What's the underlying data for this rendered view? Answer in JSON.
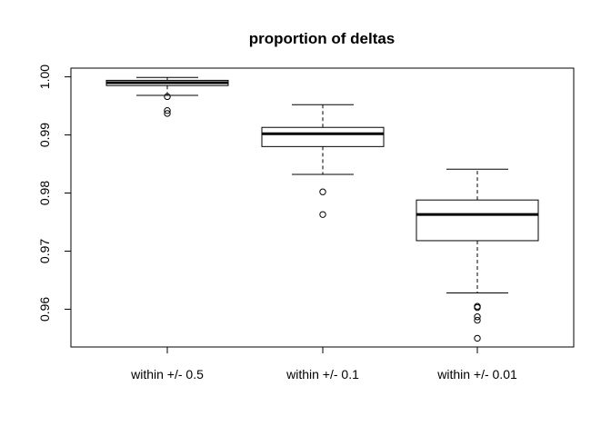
{
  "chart_data": {
    "type": "boxplot",
    "title": "proportion of deltas",
    "xlabel": "",
    "ylabel": "",
    "ylim": [
      0.9535,
      1.0015
    ],
    "yticks": [
      0.96,
      0.97,
      0.98,
      0.99,
      1.0
    ],
    "ytick_labels": [
      "0.96",
      "0.97",
      "0.98",
      "0.99",
      "1.00"
    ],
    "grid": false,
    "legend": "none",
    "categories": [
      "within +/- 0.5",
      "within +/- 0.1",
      "within +/- 0.01"
    ],
    "boxes": [
      {
        "label": "within +/- 0.5",
        "whisker_low": 0.9968,
        "q1": 0.9985,
        "median": 0.999,
        "q3": 0.9994,
        "whisker_high": 0.9999,
        "outliers": [
          0.9966,
          0.9942,
          0.9937
        ]
      },
      {
        "label": "within +/- 0.1",
        "whisker_low": 0.9832,
        "q1": 0.988,
        "median": 0.9902,
        "q3": 0.9913,
        "whisker_high": 0.9952,
        "outliers": [
          0.9802,
          0.9763
        ]
      },
      {
        "label": "within +/- 0.01",
        "whisker_low": 0.9628,
        "q1": 0.9718,
        "median": 0.9763,
        "q3": 0.9788,
        "whisker_high": 0.9841,
        "outliers": [
          0.9605,
          0.9603,
          0.9587,
          0.9581,
          0.955
        ]
      }
    ]
  }
}
